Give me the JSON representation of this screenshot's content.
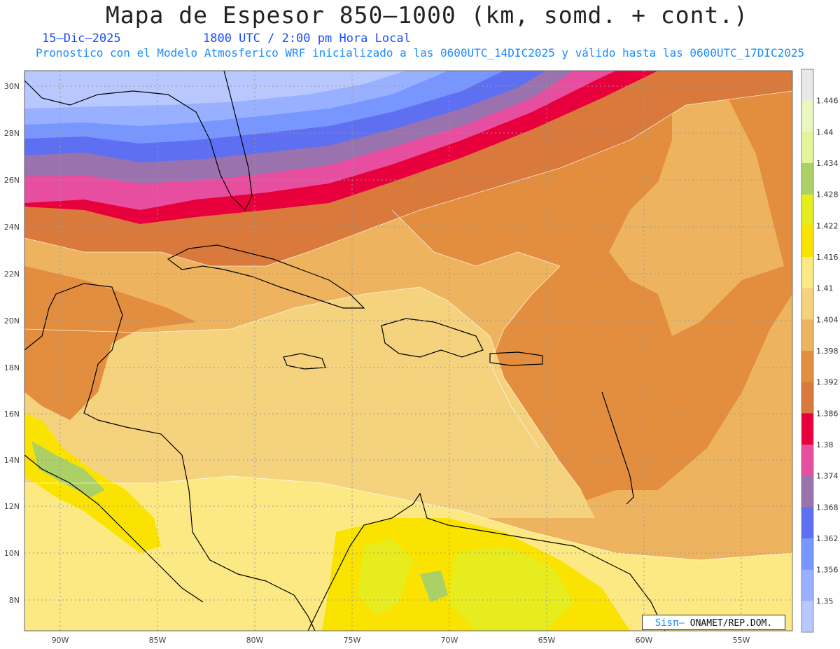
{
  "header": {
    "title": "Mapa de Espesor 850–1000 (km, somd. + cont.)",
    "date": "15–Dic–2025",
    "time": "1800 UTC / 2:00 pm Hora Local",
    "forecast_line": "Pronostico con el Modelo Atmosferico WRF inicializado a las 0600UTC_14DIC2025 y válido hasta las  0600UTC_17DIC2025"
  },
  "credit": {
    "brand": "Sisπ–",
    "org": " ONAMET/REP.DOM."
  },
  "colorbar": {
    "labels": [
      "1.35",
      "1.356",
      "1.362",
      "1.368",
      "1.374",
      "1.38",
      "1.386",
      "1.392",
      "1.398",
      "1.404",
      "1.41",
      "1.416",
      "1.422",
      "1.428",
      "1.434",
      "1.44",
      "1.446"
    ],
    "colors": [
      "#b8c8ff",
      "#98b0ff",
      "#7896ff",
      "#5f6ff2",
      "#9a72ad",
      "#e84ea0",
      "#e8003c",
      "#d97a3c",
      "#e38d3f",
      "#eeb35f",
      "#f5d27e",
      "#fde983",
      "#fae300",
      "#e6ec1d",
      "#aad066",
      "#e2f59b",
      "#eaf7c0",
      "#e8e8e8"
    ]
  },
  "lat_labels": [
    "30N",
    "28N",
    "26N",
    "24N",
    "22N",
    "20N",
    "18N",
    "16N",
    "14N",
    "12N",
    "10N",
    "8N"
  ],
  "lon_labels": [
    "90W",
    "85W",
    "80W",
    "75W",
    "70W",
    "65W",
    "60W",
    "55W"
  ],
  "icons": {
    "map": "thickness-map-graphic"
  }
}
